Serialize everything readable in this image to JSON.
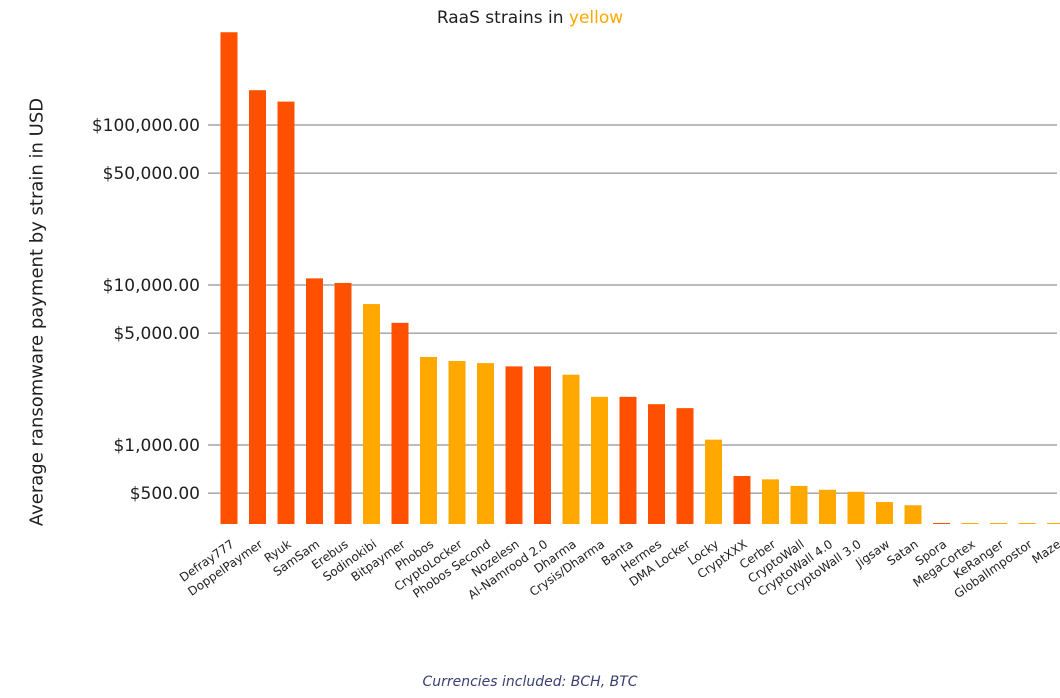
{
  "chart_data": {
    "type": "bar",
    "title_prefix": "RaaS strains in ",
    "title_highlight": "yellow",
    "ylabel": "Average ransomware payment by strain in USD",
    "footnote": "Currencies included: BCH, BTC",
    "yscale": "log",
    "yticks": [
      {
        "value": 500,
        "label": "$500.00"
      },
      {
        "value": 1000,
        "label": "$1,000.00"
      },
      {
        "value": 5000,
        "label": "$5,000.00"
      },
      {
        "value": 10000,
        "label": "$10,000.00"
      },
      {
        "value": 50000,
        "label": "$50,000.00"
      },
      {
        "value": 100000,
        "label": "$100,000.00"
      }
    ],
    "colors": {
      "raas": "#ffa800",
      "non_raas": "#ff5000",
      "grid": "#7a7a7a"
    },
    "legend": "none",
    "bars": [
      {
        "name": "Defray777",
        "value": 380000,
        "raas": false
      },
      {
        "name": "DoppelPaymer",
        "value": 165000,
        "raas": false
      },
      {
        "name": "Ryuk",
        "value": 140000,
        "raas": false
      },
      {
        "name": "SamSam",
        "value": 11000,
        "raas": false
      },
      {
        "name": "Erebus",
        "value": 10300,
        "raas": false
      },
      {
        "name": "Sodinokibi",
        "value": 7600,
        "raas": true
      },
      {
        "name": "Bitpaymer",
        "value": 5800,
        "raas": false
      },
      {
        "name": "Phobos",
        "value": 3550,
        "raas": true
      },
      {
        "name": "CryptoLocker",
        "value": 3350,
        "raas": true
      },
      {
        "name": "Phobos Second",
        "value": 3250,
        "raas": true
      },
      {
        "name": "Nozelesn",
        "value": 3100,
        "raas": false
      },
      {
        "name": "Al-Namrood 2.0",
        "value": 3100,
        "raas": false
      },
      {
        "name": "Dharma",
        "value": 2750,
        "raas": true
      },
      {
        "name": "Crysis/Dharma",
        "value": 2000,
        "raas": true
      },
      {
        "name": "Banta",
        "value": 2000,
        "raas": false
      },
      {
        "name": "Hermes",
        "value": 1800,
        "raas": false
      },
      {
        "name": "DMA Locker",
        "value": 1700,
        "raas": false
      },
      {
        "name": "Locky",
        "value": 1080,
        "raas": true
      },
      {
        "name": "CryptXXX",
        "value": 640,
        "raas": false
      },
      {
        "name": "Cerber",
        "value": 610,
        "raas": true
      },
      {
        "name": "CryptoWall",
        "value": 555,
        "raas": true
      },
      {
        "name": "CryptoWall 4.0",
        "value": 525,
        "raas": true
      },
      {
        "name": "CryptoWall 3.0",
        "value": 510,
        "raas": true
      },
      {
        "name": "Jigsaw",
        "value": 440,
        "raas": true
      },
      {
        "name": "Satan",
        "value": 420,
        "raas": true
      },
      {
        "name": "Spora",
        "value": 325,
        "raas": false
      },
      {
        "name": "MegaCortex",
        "value": 305,
        "raas": true
      },
      {
        "name": "KeRanger",
        "value": 301,
        "raas": true
      },
      {
        "name": "GlobalImpostor",
        "value": 300,
        "raas": true
      },
      {
        "name": "Maze",
        "value": 300,
        "raas": true
      }
    ]
  }
}
